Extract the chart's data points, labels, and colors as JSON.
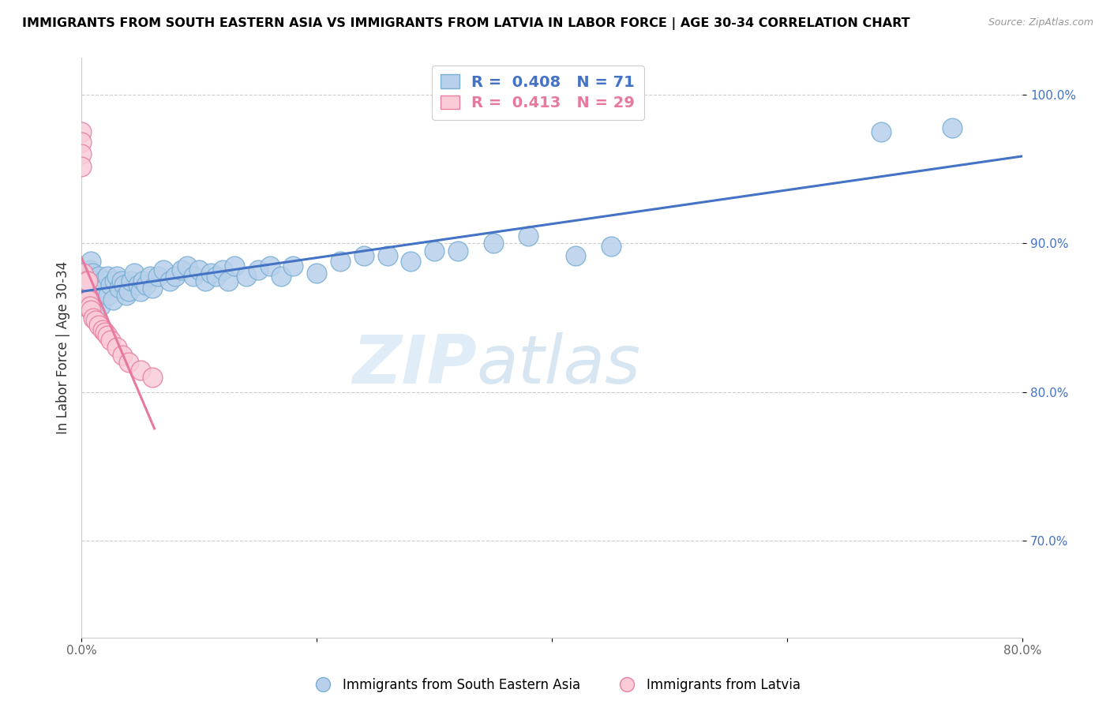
{
  "title": "IMMIGRANTS FROM SOUTH EASTERN ASIA VS IMMIGRANTS FROM LATVIA IN LABOR FORCE | AGE 30-34 CORRELATION CHART",
  "source": "Source: ZipAtlas.com",
  "ylabel": "In Labor Force | Age 30-34",
  "xlim": [
    0.0,
    0.8
  ],
  "ylim": [
    0.635,
    1.025
  ],
  "xticks": [
    0.0,
    0.2,
    0.4,
    0.6,
    0.8
  ],
  "xtick_labels": [
    "0.0%",
    "",
    "",
    "",
    "80.0%"
  ],
  "yticks": [
    0.7,
    0.8,
    0.9,
    1.0
  ],
  "ytick_labels": [
    "70.0%",
    "80.0%",
    "90.0%",
    "100.0%"
  ],
  "watermark_zip": "ZIP",
  "watermark_atlas": "atlas",
  "blue_color": "#b8d0ea",
  "blue_edge": "#7aafd4",
  "blue_line_color": "#4472c4",
  "pink_color": "#f9ccd8",
  "pink_edge": "#e87fa0",
  "pink_line_color": "#e8799e",
  "legend_r_blue": "0.408",
  "legend_n_blue": "71",
  "legend_r_pink": "0.413",
  "legend_n_pink": "29",
  "blue_x": [
    0.003,
    0.003,
    0.004,
    0.005,
    0.006,
    0.007,
    0.007,
    0.008,
    0.008,
    0.009,
    0.01,
    0.01,
    0.012,
    0.013,
    0.014,
    0.015,
    0.016,
    0.018,
    0.019,
    0.02,
    0.022,
    0.023,
    0.025,
    0.027,
    0.028,
    0.03,
    0.032,
    0.034,
    0.036,
    0.038,
    0.04,
    0.042,
    0.045,
    0.048,
    0.05,
    0.052,
    0.055,
    0.058,
    0.06,
    0.065,
    0.07,
    0.075,
    0.08,
    0.085,
    0.09,
    0.095,
    0.1,
    0.105,
    0.11,
    0.115,
    0.12,
    0.125,
    0.13,
    0.14,
    0.15,
    0.16,
    0.17,
    0.18,
    0.2,
    0.22,
    0.24,
    0.26,
    0.28,
    0.3,
    0.32,
    0.35,
    0.38,
    0.42,
    0.45,
    0.68,
    0.74
  ],
  "blue_y": [
    0.865,
    0.875,
    0.858,
    0.87,
    0.878,
    0.882,
    0.872,
    0.888,
    0.875,
    0.88,
    0.87,
    0.862,
    0.875,
    0.865,
    0.872,
    0.878,
    0.858,
    0.868,
    0.875,
    0.87,
    0.878,
    0.865,
    0.872,
    0.862,
    0.875,
    0.878,
    0.87,
    0.875,
    0.872,
    0.865,
    0.868,
    0.875,
    0.88,
    0.872,
    0.868,
    0.875,
    0.872,
    0.878,
    0.87,
    0.878,
    0.882,
    0.875,
    0.878,
    0.882,
    0.885,
    0.878,
    0.882,
    0.875,
    0.88,
    0.878,
    0.882,
    0.875,
    0.885,
    0.878,
    0.882,
    0.885,
    0.878,
    0.885,
    0.88,
    0.888,
    0.892,
    0.892,
    0.888,
    0.895,
    0.895,
    0.9,
    0.905,
    0.892,
    0.898,
    0.975,
    0.978
  ],
  "pink_x": [
    0.0,
    0.0,
    0.0,
    0.0,
    0.001,
    0.001,
    0.002,
    0.002,
    0.003,
    0.003,
    0.004,
    0.004,
    0.005,
    0.005,
    0.006,
    0.007,
    0.008,
    0.01,
    0.012,
    0.015,
    0.018,
    0.02,
    0.022,
    0.025,
    0.03,
    0.035,
    0.04,
    0.05,
    0.06
  ],
  "pink_y": [
    0.975,
    0.968,
    0.96,
    0.952,
    0.88,
    0.87,
    0.872,
    0.862,
    0.868,
    0.858,
    0.875,
    0.862,
    0.875,
    0.858,
    0.862,
    0.858,
    0.855,
    0.85,
    0.848,
    0.845,
    0.842,
    0.84,
    0.838,
    0.835,
    0.83,
    0.825,
    0.82,
    0.815,
    0.81
  ],
  "pink_trendline_x": [
    0.0,
    0.062
  ],
  "blue_trendline_x": [
    0.0,
    0.8
  ],
  "blue_label": "Immigrants from South Eastern Asia",
  "pink_label": "Immigrants from Latvia"
}
